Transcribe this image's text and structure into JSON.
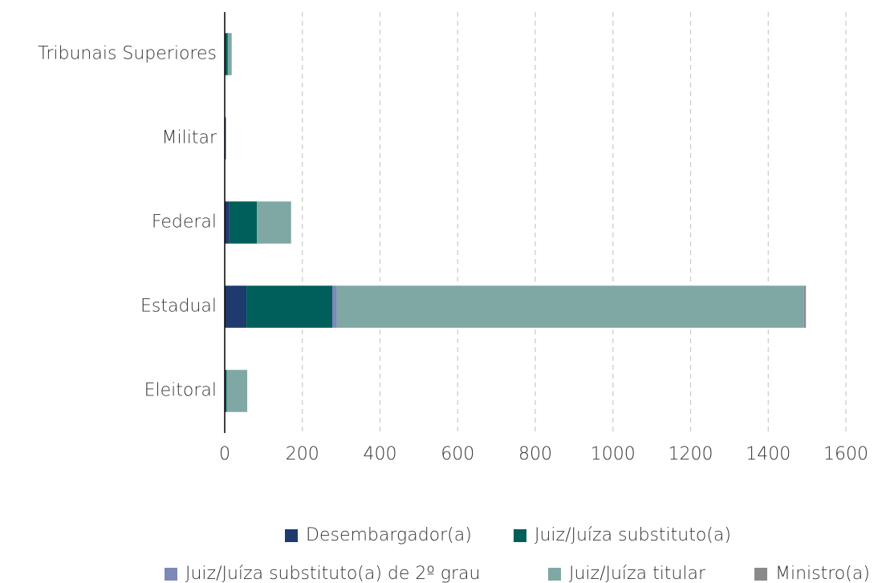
{
  "chart_data": {
    "type": "bar",
    "orientation": "horizontal",
    "stacked": true,
    "categories": [
      "Tribunais Superiores",
      "Militar",
      "Federal",
      "Estadual",
      "Eleitoral"
    ],
    "series": [
      {
        "name": "Desembargador(a)",
        "color": "#1f3a6e",
        "values": [
          0,
          3,
          12,
          56,
          2
        ]
      },
      {
        "name": "Juiz/Juíza substituto(a)",
        "color": "#005f5a",
        "values": [
          8,
          0,
          71,
          221,
          3
        ]
      },
      {
        "name": "Juiz/Juíza substituto(a) de 2º grau",
        "color": "#7d89b8",
        "values": [
          0,
          0,
          0,
          12,
          0
        ]
      },
      {
        "name": "Juiz/Juíza titular",
        "color": "#7fa8a5",
        "values": [
          10,
          0,
          88,
          1203,
          53
        ]
      },
      {
        "name": "Ministro(a)",
        "color": "#8a8a8a",
        "values": [
          0,
          0,
          0,
          5,
          0
        ]
      }
    ],
    "xlim": [
      0,
      1600
    ],
    "xticks": [
      0,
      200,
      400,
      600,
      800,
      1000,
      1200,
      1400,
      1600
    ],
    "grid": true,
    "legend": "bottom"
  }
}
